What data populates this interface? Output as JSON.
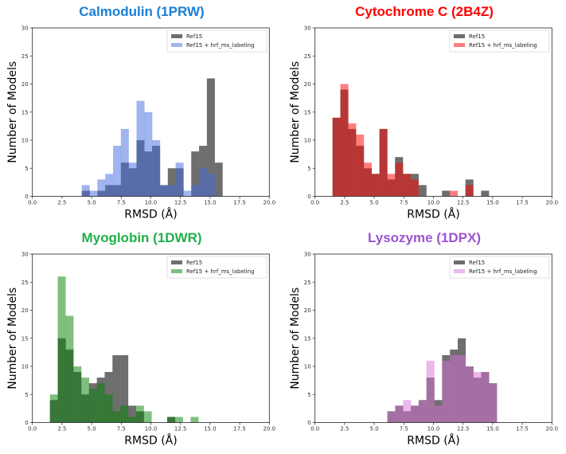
{
  "chart_data": [
    {
      "type": "bar",
      "title": "Calmodulin (1PRW)",
      "title_color": "#1a7fd4",
      "xlabel": "RMSD (Å)",
      "ylabel": "Number of Models",
      "xlim": [
        0,
        20
      ],
      "ylim": [
        0,
        30
      ],
      "xticks": [
        "0.0",
        "2.5",
        "5.0",
        "7.5",
        "10.0",
        "12.5",
        "15.0",
        "17.5",
        "20.0"
      ],
      "yticks": [
        "0",
        "5",
        "10",
        "15",
        "20",
        "25",
        "30"
      ],
      "legend_position": "top-right",
      "bin_start": 4.17,
      "bin_width": 0.66,
      "series": [
        {
          "name": "Ref15",
          "color": "#6e6e6e",
          "values": [
            1,
            0,
            1,
            2,
            2,
            6,
            5,
            10,
            8,
            9,
            2,
            5,
            5,
            0,
            8,
            9,
            21,
            6
          ]
        },
        {
          "name": "Ref15 + hrf_ms_labeling",
          "color": "#4169e1",
          "values": [
            2,
            1,
            3,
            4,
            9,
            12,
            6,
            17,
            15,
            10,
            2,
            2,
            6,
            1,
            2,
            5,
            4,
            0
          ]
        }
      ]
    },
    {
      "type": "bar",
      "title": "Cytochrome C (2B4Z)",
      "title_color": "#ff0000",
      "xlabel": "RMSD (Å)",
      "ylabel": "Number of Models",
      "xlim": [
        0,
        20
      ],
      "ylim": [
        0,
        30
      ],
      "xticks": [
        "0.0",
        "2.5",
        "5.0",
        "7.5",
        "10.0",
        "12.5",
        "15.0",
        "17.5",
        "20.0"
      ],
      "yticks": [
        "0",
        "5",
        "10",
        "15",
        "20",
        "25",
        "30"
      ],
      "legend_position": "top-right",
      "bin_start": 1.48,
      "bin_width": 0.66,
      "series": [
        {
          "name": "Ref15",
          "color": "#6e6e6e",
          "values": [
            14,
            19,
            12,
            9,
            5,
            4,
            12,
            3,
            7,
            4,
            4,
            2,
            0,
            0,
            1,
            0,
            0,
            3,
            0,
            1
          ]
        },
        {
          "name": "Ref15 + hrf_ms_labeling",
          "color": "#ff0000",
          "values": [
            14,
            20,
            13,
            11,
            6,
            4,
            12,
            4,
            6,
            4,
            3,
            0,
            0,
            0,
            0,
            1,
            0,
            2,
            0,
            0
          ]
        }
      ]
    },
    {
      "type": "bar",
      "title": "Myoglobin (1DWR)",
      "title_color": "#1fb04a",
      "xlabel": "RMSD (Å)",
      "ylabel": "Number of Models",
      "xlim": [
        0,
        20
      ],
      "ylim": [
        0,
        30
      ],
      "xticks": [
        "0.0",
        "2.5",
        "5.0",
        "7.5",
        "10.0",
        "12.5",
        "15.0",
        "17.5",
        "20.0"
      ],
      "yticks": [
        "0",
        "5",
        "10",
        "15",
        "20",
        "25",
        "30"
      ],
      "legend_position": "top-right",
      "bin_start": 1.48,
      "bin_width": 0.66,
      "series": [
        {
          "name": "Ref15",
          "color": "#6e6e6e",
          "values": [
            4,
            15,
            13,
            9,
            5,
            7,
            8,
            9,
            12,
            12,
            3,
            2,
            0,
            0,
            0,
            1,
            0,
            0,
            0
          ]
        },
        {
          "name": "Ref15 + hrf_ms_labeling",
          "color": "#008000",
          "values": [
            5,
            26,
            19,
            10,
            8,
            6,
            7,
            5,
            2,
            3,
            1,
            3,
            2,
            0,
            0,
            1,
            1,
            0,
            1
          ]
        }
      ]
    },
    {
      "type": "bar",
      "title": "Lysozyme (1DPX)",
      "title_color": "#9b55d0",
      "xlabel": "RMSD (Å)",
      "ylabel": "Number of Models",
      "xlim": [
        0,
        20
      ],
      "ylim": [
        0,
        30
      ],
      "xticks": [
        "0.0",
        "2.5",
        "5.0",
        "7.5",
        "10.0",
        "12.5",
        "15.0",
        "17.5",
        "20.0"
      ],
      "yticks": [
        "0",
        "5",
        "10",
        "15",
        "20",
        "25",
        "30"
      ],
      "legend_position": "top-right",
      "bin_start": 6.11,
      "bin_width": 0.66,
      "series": [
        {
          "name": "Ref15",
          "color": "#6e6e6e",
          "values": [
            2,
            3,
            2,
            3,
            4,
            8,
            4,
            12,
            13,
            15,
            10,
            8,
            9,
            7
          ]
        },
        {
          "name": "Ref15 + hrf_ms_labeling",
          "color": "#da70d6",
          "values": [
            2,
            3,
            4,
            3,
            4,
            11,
            3,
            11,
            12,
            12,
            10,
            9,
            9,
            7
          ]
        }
      ]
    }
  ]
}
